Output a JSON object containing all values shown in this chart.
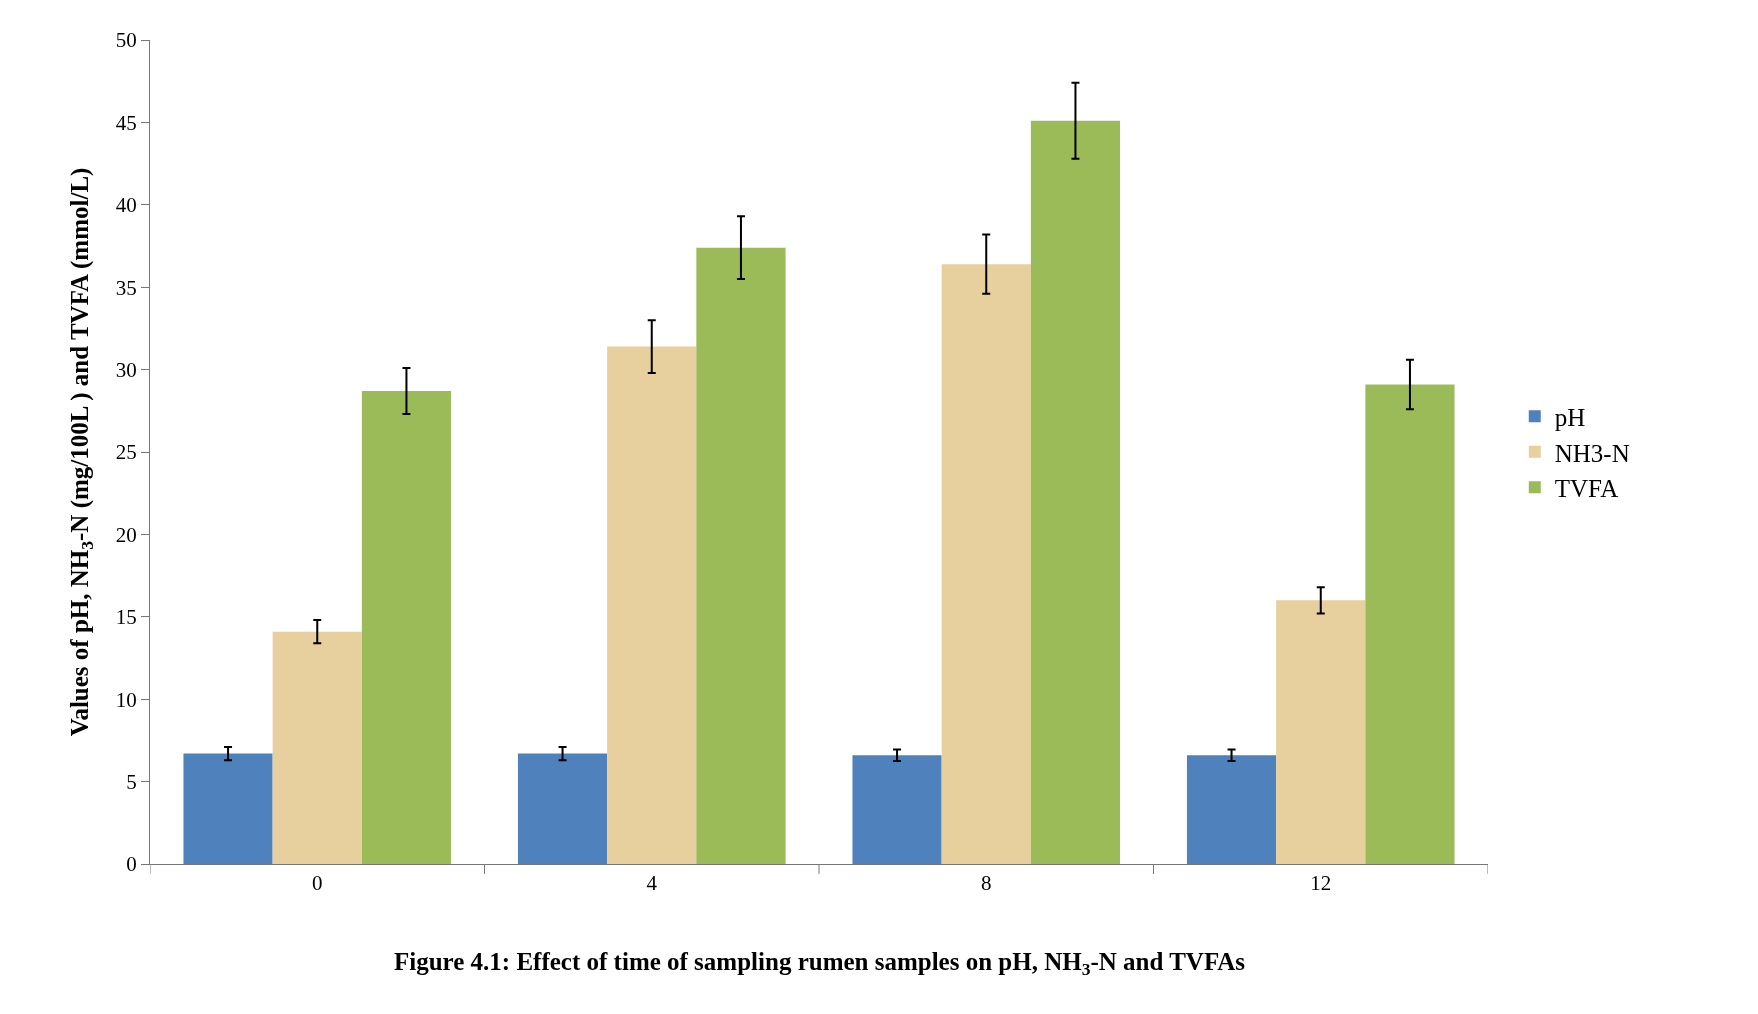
{
  "chart_data": {
    "type": "bar",
    "ylabel": "Values of pH, NH$_{3}$-N (mg/100L ) and TVFA (mmol/L)",
    "categories": [
      "0",
      "4",
      "8",
      "12"
    ],
    "series": [
      {
        "name": "pH",
        "color": "#4f81bd",
        "values": [
          6.7,
          6.7,
          6.6,
          6.6
        ],
        "errors": [
          0.4,
          0.4,
          0.35,
          0.35
        ]
      },
      {
        "name": "NH3-N",
        "color": "#e8cf9e",
        "values": [
          14.1,
          31.4,
          36.4,
          16.0
        ],
        "errors": [
          0.7,
          1.6,
          1.8,
          0.8
        ]
      },
      {
        "name": "TVFA",
        "color": "#9bbb59",
        "values": [
          28.7,
          37.4,
          45.1,
          29.1
        ],
        "errors": [
          1.4,
          1.9,
          2.3,
          1.5
        ]
      }
    ],
    "ylim": [
      0,
      50
    ],
    "yticks": [
      0,
      5,
      10,
      15,
      20,
      25,
      30,
      35,
      40,
      45,
      50
    ],
    "grid": false,
    "legend": "right",
    "annotations": [
      "Figure 4.1: Effect of time of sampling rumen samples on pH, NH$_{3}$-N and TVFAs"
    ]
  }
}
